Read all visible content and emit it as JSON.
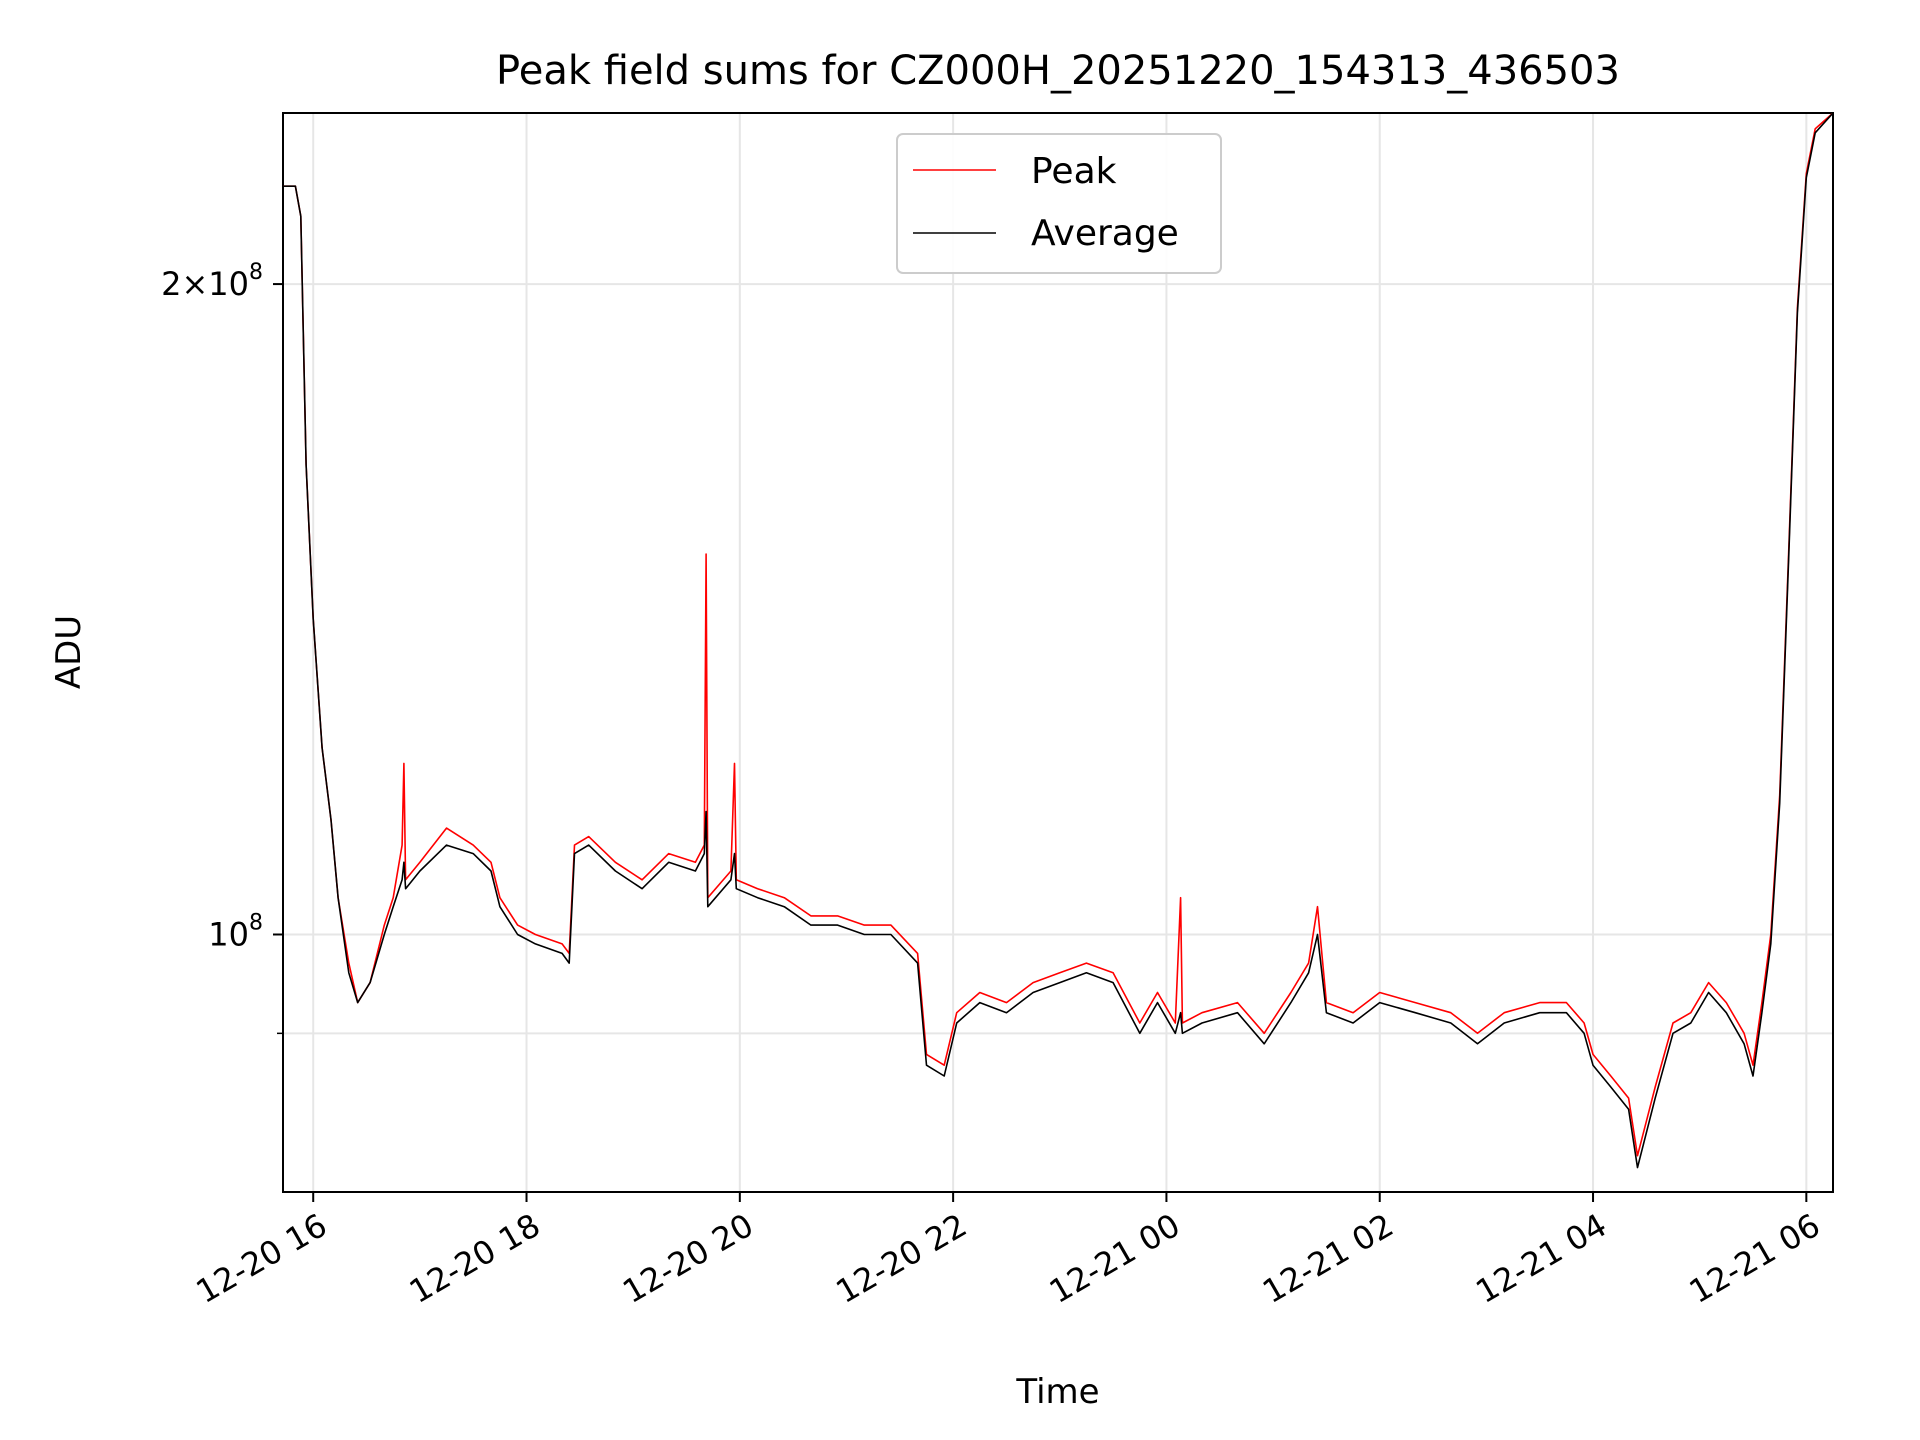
{
  "chart_data": {
    "type": "line",
    "title": "Peak field sums for CZ000H_20251220_154313_436503",
    "xlabel": "Time",
    "ylabel": "ADU",
    "y_scale": "log",
    "ylim": [
      76000000,
      240000000
    ],
    "xlim": [
      "2025-12-20 15:43",
      "2025-12-21 06:15"
    ],
    "grid": true,
    "legend_position": "top-center",
    "x_ticks": [
      {
        "t": "2025-12-20 16:00",
        "label": "12-20 16"
      },
      {
        "t": "2025-12-20 18:00",
        "label": "12-20 18"
      },
      {
        "t": "2025-12-20 20:00",
        "label": "12-20 20"
      },
      {
        "t": "2025-12-20 22:00",
        "label": "12-20 22"
      },
      {
        "t": "2025-12-21 00:00",
        "label": "12-21 00"
      },
      {
        "t": "2025-12-21 02:00",
        "label": "12-21 02"
      },
      {
        "t": "2025-12-21 04:00",
        "label": "12-21 04"
      },
      {
        "t": "2025-12-21 06:00",
        "label": "12-21 06"
      }
    ],
    "y_ticks_major": [
      {
        "v": 100000000,
        "base": "10",
        "exp": "8",
        "coef": ""
      },
      {
        "v": 200000000,
        "base": "10",
        "exp": "8",
        "coef": "2×"
      }
    ],
    "y_ticks_minor": [
      90000000
    ],
    "series": [
      {
        "name": "Peak",
        "color": "#ff0000",
        "points": [
          [
            "2025-12-20 15:43",
            222000000
          ],
          [
            "2025-12-20 15:50",
            222000000
          ],
          [
            "2025-12-20 15:53",
            215000000
          ],
          [
            "2025-12-20 15:56",
            165000000
          ],
          [
            "2025-12-20 16:00",
            140000000
          ],
          [
            "2025-12-20 16:05",
            122000000
          ],
          [
            "2025-12-20 16:10",
            113000000
          ],
          [
            "2025-12-20 16:14",
            104000000
          ],
          [
            "2025-12-20 16:20",
            97000000
          ],
          [
            "2025-12-20 16:25",
            93000000
          ],
          [
            "2025-12-20 16:32",
            95000000
          ],
          [
            "2025-12-20 16:40",
            101000000
          ],
          [
            "2025-12-20 16:45",
            104000000
          ],
          [
            "2025-12-20 16:50",
            110000000
          ],
          [
            "2025-12-20 16:51",
            120000000
          ],
          [
            "2025-12-20 16:52",
            106000000
          ],
          [
            "2025-12-20 17:00",
            108000000
          ],
          [
            "2025-12-20 17:15",
            112000000
          ],
          [
            "2025-12-20 17:30",
            110000000
          ],
          [
            "2025-12-20 17:40",
            108000000
          ],
          [
            "2025-12-20 17:45",
            104000000
          ],
          [
            "2025-12-20 17:55",
            101000000
          ],
          [
            "2025-12-20 18:05",
            100000000
          ],
          [
            "2025-12-20 18:20",
            99000000
          ],
          [
            "2025-12-20 18:24",
            98000000
          ],
          [
            "2025-12-20 18:27",
            110000000
          ],
          [
            "2025-12-20 18:35",
            111000000
          ],
          [
            "2025-12-20 18:50",
            108000000
          ],
          [
            "2025-12-20 19:05",
            106000000
          ],
          [
            "2025-12-20 19:20",
            109000000
          ],
          [
            "2025-12-20 19:35",
            108000000
          ],
          [
            "2025-12-20 19:40",
            110000000
          ],
          [
            "2025-12-20 19:41",
            150000000
          ],
          [
            "2025-12-20 19:42",
            104000000
          ],
          [
            "2025-12-20 19:55",
            107000000
          ],
          [
            "2025-12-20 19:57",
            120000000
          ],
          [
            "2025-12-20 19:58",
            106000000
          ],
          [
            "2025-12-20 20:10",
            105000000
          ],
          [
            "2025-12-20 20:25",
            104000000
          ],
          [
            "2025-12-20 20:40",
            102000000
          ],
          [
            "2025-12-20 20:55",
            102000000
          ],
          [
            "2025-12-20 21:10",
            101000000
          ],
          [
            "2025-12-20 21:25",
            101000000
          ],
          [
            "2025-12-20 21:40",
            98000000
          ],
          [
            "2025-12-20 21:45",
            88000000
          ],
          [
            "2025-12-20 21:55",
            87000000
          ],
          [
            "2025-12-20 22:02",
            92000000
          ],
          [
            "2025-12-20 22:15",
            94000000
          ],
          [
            "2025-12-20 22:30",
            93000000
          ],
          [
            "2025-12-20 22:45",
            95000000
          ],
          [
            "2025-12-20 23:00",
            96000000
          ],
          [
            "2025-12-20 23:15",
            97000000
          ],
          [
            "2025-12-20 23:30",
            96000000
          ],
          [
            "2025-12-20 23:45",
            91000000
          ],
          [
            "2025-12-20 23:55",
            94000000
          ],
          [
            "2025-12-21 00:05",
            91000000
          ],
          [
            "2025-12-21 00:08",
            104000000
          ],
          [
            "2025-12-21 00:09",
            91000000
          ],
          [
            "2025-12-21 00:20",
            92000000
          ],
          [
            "2025-12-21 00:40",
            93000000
          ],
          [
            "2025-12-21 00:55",
            90000000
          ],
          [
            "2025-12-21 01:10",
            94000000
          ],
          [
            "2025-12-21 01:20",
            97000000
          ],
          [
            "2025-12-21 01:25",
            103000000
          ],
          [
            "2025-12-21 01:30",
            93000000
          ],
          [
            "2025-12-21 01:45",
            92000000
          ],
          [
            "2025-12-21 02:00",
            94000000
          ],
          [
            "2025-12-21 02:20",
            93000000
          ],
          [
            "2025-12-21 02:40",
            92000000
          ],
          [
            "2025-12-21 02:55",
            90000000
          ],
          [
            "2025-12-21 03:10",
            92000000
          ],
          [
            "2025-12-21 03:30",
            93000000
          ],
          [
            "2025-12-21 03:45",
            93000000
          ],
          [
            "2025-12-21 03:55",
            91000000
          ],
          [
            "2025-12-21 04:00",
            88000000
          ],
          [
            "2025-12-21 04:10",
            86000000
          ],
          [
            "2025-12-21 04:20",
            84000000
          ],
          [
            "2025-12-21 04:25",
            79000000
          ],
          [
            "2025-12-21 04:35",
            85000000
          ],
          [
            "2025-12-21 04:45",
            91000000
          ],
          [
            "2025-12-21 04:55",
            92000000
          ],
          [
            "2025-12-21 05:05",
            95000000
          ],
          [
            "2025-12-21 05:15",
            93000000
          ],
          [
            "2025-12-21 05:25",
            90000000
          ],
          [
            "2025-12-21 05:30",
            87000000
          ],
          [
            "2025-12-21 05:35",
            93000000
          ],
          [
            "2025-12-21 05:40",
            100000000
          ],
          [
            "2025-12-21 05:45",
            116000000
          ],
          [
            "2025-12-21 05:50",
            150000000
          ],
          [
            "2025-12-21 05:55",
            195000000
          ],
          [
            "2025-12-21 06:00",
            225000000
          ],
          [
            "2025-12-21 06:05",
            236000000
          ],
          [
            "2025-12-21 06:15",
            240000000
          ]
        ]
      },
      {
        "name": "Average",
        "color": "#000000",
        "points": [
          [
            "2025-12-20 15:43",
            222000000
          ],
          [
            "2025-12-20 15:50",
            222000000
          ],
          [
            "2025-12-20 15:53",
            215000000
          ],
          [
            "2025-12-20 15:56",
            165000000
          ],
          [
            "2025-12-20 16:00",
            140000000
          ],
          [
            "2025-12-20 16:05",
            122000000
          ],
          [
            "2025-12-20 16:10",
            113000000
          ],
          [
            "2025-12-20 16:14",
            104000000
          ],
          [
            "2025-12-20 16:20",
            96000000
          ],
          [
            "2025-12-20 16:25",
            93000000
          ],
          [
            "2025-12-20 16:32",
            95000000
          ],
          [
            "2025-12-20 16:40",
            100000000
          ],
          [
            "2025-12-20 16:45",
            103000000
          ],
          [
            "2025-12-20 16:50",
            106000000
          ],
          [
            "2025-12-20 16:51",
            108000000
          ],
          [
            "2025-12-20 16:52",
            105000000
          ],
          [
            "2025-12-20 17:00",
            107000000
          ],
          [
            "2025-12-20 17:15",
            110000000
          ],
          [
            "2025-12-20 17:30",
            109000000
          ],
          [
            "2025-12-20 17:40",
            107000000
          ],
          [
            "2025-12-20 17:45",
            103000000
          ],
          [
            "2025-12-20 17:55",
            100000000
          ],
          [
            "2025-12-20 18:05",
            99000000
          ],
          [
            "2025-12-20 18:20",
            98000000
          ],
          [
            "2025-12-20 18:24",
            97000000
          ],
          [
            "2025-12-20 18:27",
            109000000
          ],
          [
            "2025-12-20 18:35",
            110000000
          ],
          [
            "2025-12-20 18:50",
            107000000
          ],
          [
            "2025-12-20 19:05",
            105000000
          ],
          [
            "2025-12-20 19:20",
            108000000
          ],
          [
            "2025-12-20 19:35",
            107000000
          ],
          [
            "2025-12-20 19:40",
            109000000
          ],
          [
            "2025-12-20 19:41",
            114000000
          ],
          [
            "2025-12-20 19:42",
            103000000
          ],
          [
            "2025-12-20 19:55",
            106000000
          ],
          [
            "2025-12-20 19:57",
            109000000
          ],
          [
            "2025-12-20 19:58",
            105000000
          ],
          [
            "2025-12-20 20:10",
            104000000
          ],
          [
            "2025-12-20 20:25",
            103000000
          ],
          [
            "2025-12-20 20:40",
            101000000
          ],
          [
            "2025-12-20 20:55",
            101000000
          ],
          [
            "2025-12-20 21:10",
            100000000
          ],
          [
            "2025-12-20 21:25",
            100000000
          ],
          [
            "2025-12-20 21:40",
            97000000
          ],
          [
            "2025-12-20 21:45",
            87000000
          ],
          [
            "2025-12-20 21:55",
            86000000
          ],
          [
            "2025-12-20 22:02",
            91000000
          ],
          [
            "2025-12-20 22:15",
            93000000
          ],
          [
            "2025-12-20 22:30",
            92000000
          ],
          [
            "2025-12-20 22:45",
            94000000
          ],
          [
            "2025-12-20 23:00",
            95000000
          ],
          [
            "2025-12-20 23:15",
            96000000
          ],
          [
            "2025-12-20 23:30",
            95000000
          ],
          [
            "2025-12-20 23:45",
            90000000
          ],
          [
            "2025-12-20 23:55",
            93000000
          ],
          [
            "2025-12-21 00:05",
            90000000
          ],
          [
            "2025-12-21 00:08",
            92000000
          ],
          [
            "2025-12-21 00:09",
            90000000
          ],
          [
            "2025-12-21 00:20",
            91000000
          ],
          [
            "2025-12-21 00:40",
            92000000
          ],
          [
            "2025-12-21 00:55",
            89000000
          ],
          [
            "2025-12-21 01:10",
            93000000
          ],
          [
            "2025-12-21 01:20",
            96000000
          ],
          [
            "2025-12-21 01:25",
            100000000
          ],
          [
            "2025-12-21 01:30",
            92000000
          ],
          [
            "2025-12-21 01:45",
            91000000
          ],
          [
            "2025-12-21 02:00",
            93000000
          ],
          [
            "2025-12-21 02:20",
            92000000
          ],
          [
            "2025-12-21 02:40",
            91000000
          ],
          [
            "2025-12-21 02:55",
            89000000
          ],
          [
            "2025-12-21 03:10",
            91000000
          ],
          [
            "2025-12-21 03:30",
            92000000
          ],
          [
            "2025-12-21 03:45",
            92000000
          ],
          [
            "2025-12-21 03:55",
            90000000
          ],
          [
            "2025-12-21 04:00",
            87000000
          ],
          [
            "2025-12-21 04:10",
            85000000
          ],
          [
            "2025-12-21 04:20",
            83000000
          ],
          [
            "2025-12-21 04:25",
            78000000
          ],
          [
            "2025-12-21 04:35",
            84000000
          ],
          [
            "2025-12-21 04:45",
            90000000
          ],
          [
            "2025-12-21 04:55",
            91000000
          ],
          [
            "2025-12-21 05:05",
            94000000
          ],
          [
            "2025-12-21 05:15",
            92000000
          ],
          [
            "2025-12-21 05:25",
            89000000
          ],
          [
            "2025-12-21 05:30",
            86000000
          ],
          [
            "2025-12-21 05:35",
            92000000
          ],
          [
            "2025-12-21 05:40",
            99000000
          ],
          [
            "2025-12-21 05:45",
            115000000
          ],
          [
            "2025-12-21 05:50",
            149000000
          ],
          [
            "2025-12-21 05:55",
            194000000
          ],
          [
            "2025-12-21 06:00",
            224000000
          ],
          [
            "2025-12-21 06:05",
            235000000
          ],
          [
            "2025-12-21 06:15",
            240000000
          ]
        ]
      }
    ]
  }
}
